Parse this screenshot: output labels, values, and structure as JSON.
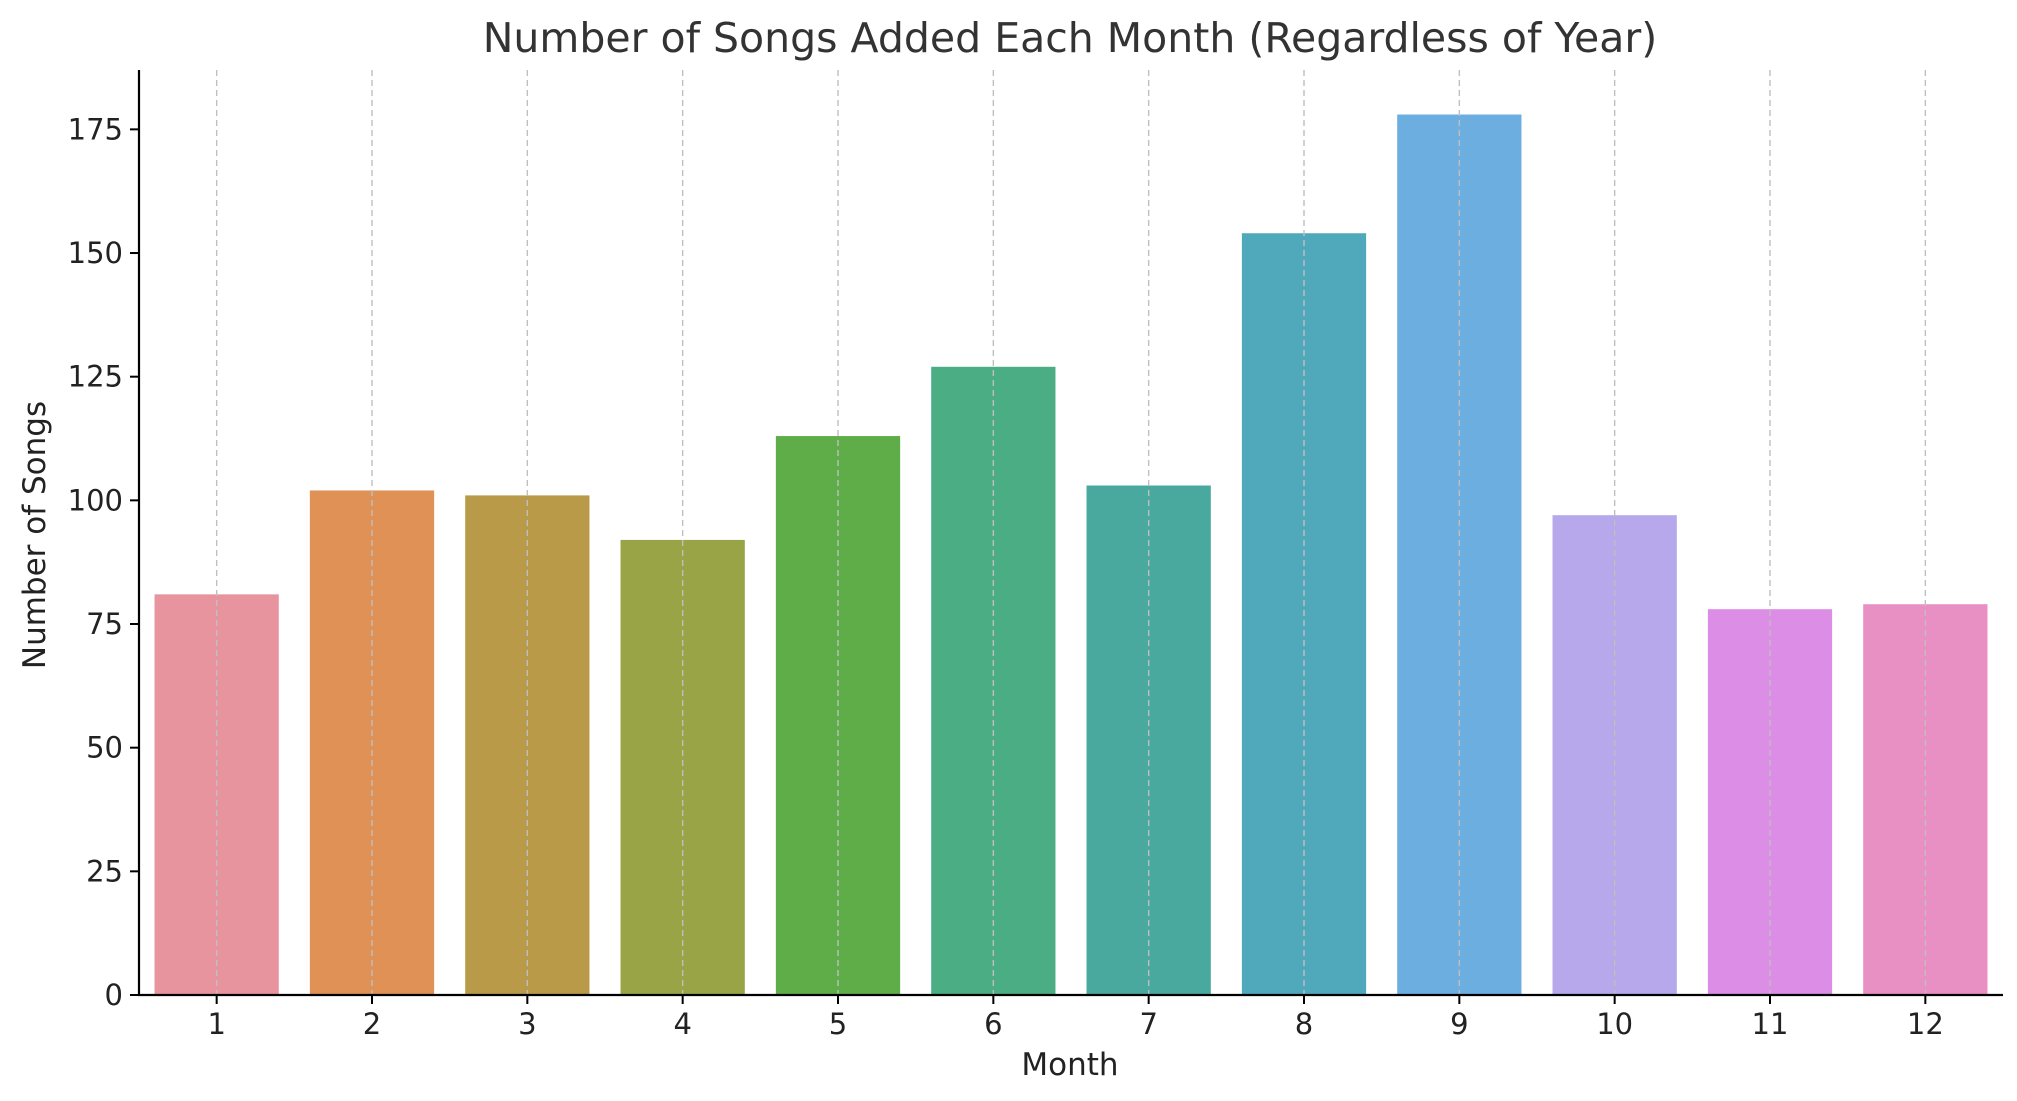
{
  "chart_data": {
    "type": "bar",
    "title": "Number of Songs Added Each Month (Regardless of Year)",
    "xlabel": "Month",
    "ylabel": "Number of Songs",
    "categories": [
      "1",
      "2",
      "3",
      "4",
      "5",
      "6",
      "7",
      "8",
      "9",
      "10",
      "11",
      "12"
    ],
    "values": [
      81,
      102,
      101,
      92,
      113,
      127,
      103,
      154,
      178,
      97,
      78,
      79
    ],
    "colors": [
      "#e8949f",
      "#e09156",
      "#b89a48",
      "#98a446",
      "#5fad48",
      "#4aad84",
      "#49a99f",
      "#4fa9bb",
      "#6daee0",
      "#b6a8ea",
      "#dc8ee6",
      "#e88fc4"
    ],
    "ylim": [
      0,
      187
    ],
    "yticks": [
      0,
      25,
      50,
      75,
      100,
      125,
      150,
      175
    ],
    "grid": "vertical dashed"
  }
}
